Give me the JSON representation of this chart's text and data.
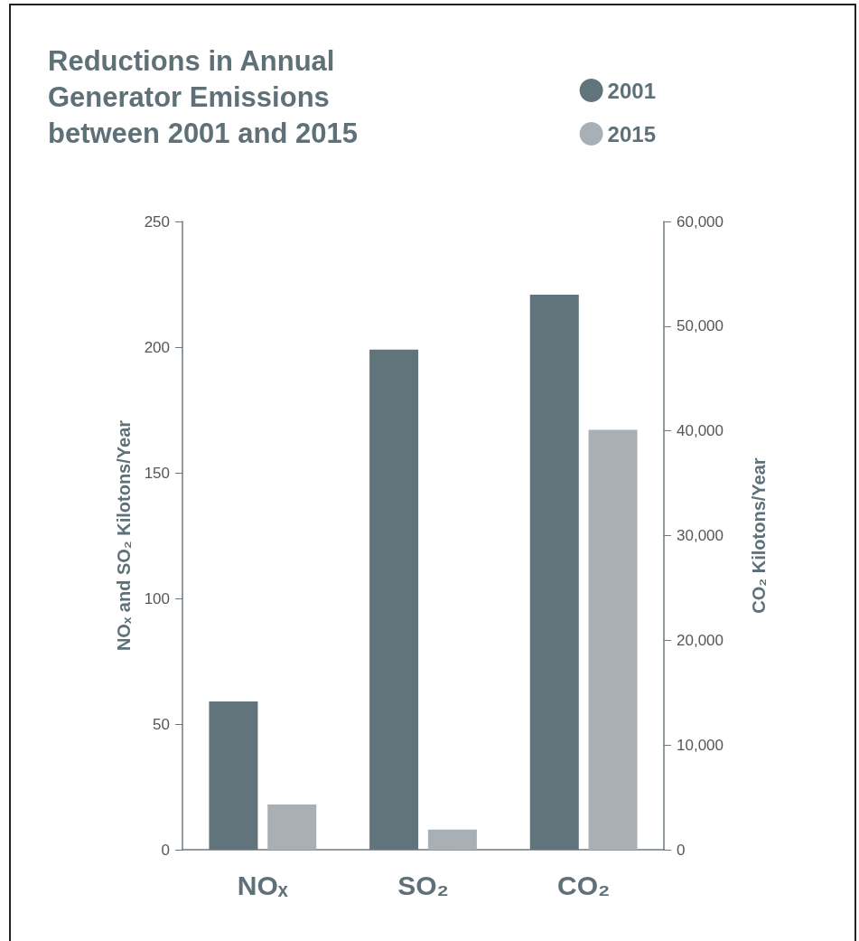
{
  "chart_data": {
    "type": "bar",
    "title": "Reductions in Annual\nGenerator Emissions\nbetween 2001 and 2015",
    "categories": [
      "NOₓ",
      "SO₂",
      "CO₂"
    ],
    "series": [
      {
        "name": "2001",
        "color": "#61737b",
        "values": [
          59,
          199,
          null
        ]
      },
      {
        "name": "2015",
        "color": "#a9b0b5",
        "values": [
          18,
          8,
          null
        ]
      },
      {
        "color": "#61737b",
        "values": [
          null,
          null,
          53000
        ],
        "axis": "y2"
      },
      {
        "color": "#a9b0b5",
        "values": [
          null,
          null,
          40100
        ],
        "axis": "y2"
      }
    ],
    "ylabel": "NOₓ and SO₂ Kilotons/Year",
    "y2label": "CO₂ Kilotons/Year",
    "ylim": [
      0,
      250
    ],
    "yticks": [
      0,
      50,
      100,
      150,
      200,
      250
    ],
    "y2lim": [
      0,
      60000
    ],
    "y2ticks": [
      {
        "value": 0,
        "label": "0"
      },
      {
        "value": 10000,
        "label": "10,000"
      },
      {
        "value": 20000,
        "label": "20,000"
      },
      {
        "value": 30000,
        "label": "30,000"
      },
      {
        "value": 40000,
        "label": "40,000"
      },
      {
        "value": 50000,
        "label": "50,000"
      },
      {
        "value": 60000,
        "label": "60,000"
      }
    ],
    "grid": false,
    "legend": "top right"
  }
}
